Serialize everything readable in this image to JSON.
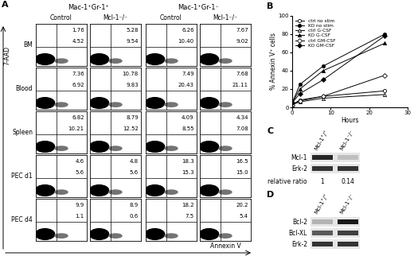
{
  "panel_labels": [
    "A",
    "B",
    "C",
    "D"
  ],
  "panel_A": {
    "y_label": "7-AAD",
    "x_label": "Annexin V",
    "groups": [
      {
        "title": "Mac-1⁺Gr-1⁺",
        "columns": [
          "Control",
          "Mcl-1⁻/⁻"
        ]
      },
      {
        "title": "Mac-1⁺Gr-1⁻",
        "columns": [
          "Control",
          "Mcl-1⁻/⁻"
        ]
      }
    ],
    "rows": [
      {
        "name": "BM",
        "cells": [
          [
            "1.76",
            "4.52"
          ],
          [
            "5.28",
            "9.54"
          ],
          [
            "6.26",
            "10.40"
          ],
          [
            "7.67",
            "9.02"
          ]
        ]
      },
      {
        "name": "Blood",
        "cells": [
          [
            "7.36",
            "6.92"
          ],
          [
            "10.78",
            "9.83"
          ],
          [
            "7.49",
            "20.43"
          ],
          [
            "7.68",
            "21.11"
          ]
        ]
      },
      {
        "name": "Spleen",
        "cells": [
          [
            "6.82",
            "10.21"
          ],
          [
            "8.79",
            "12.52"
          ],
          [
            "4.09",
            "8.55"
          ],
          [
            "4.34",
            "7.08"
          ]
        ]
      },
      {
        "name": "PEC d1",
        "cells": [
          [
            "4.6",
            "5.6"
          ],
          [
            "4.8",
            "5.6"
          ],
          [
            "18.3",
            "15.3"
          ],
          [
            "16.5",
            "15.0"
          ]
        ]
      },
      {
        "name": "PEC d4",
        "cells": [
          [
            "9.9",
            "1.1"
          ],
          [
            "8.9",
            "0.6"
          ],
          [
            "18.2",
            "7.5"
          ],
          [
            "20.2",
            "5.4"
          ]
        ]
      }
    ]
  },
  "chart_data": {
    "type": "line",
    "x_label": "Hours",
    "y_label": "% Annexin V⁺ cells",
    "x": [
      0,
      2,
      8,
      24
    ],
    "xlim": [
      0,
      30
    ],
    "xticks": [
      0,
      10,
      20,
      30
    ],
    "ylim": [
      0,
      100
    ],
    "yticks": [
      0,
      20,
      40,
      60,
      80,
      100
    ],
    "grid": false,
    "legend": "upper left",
    "series": [
      {
        "name": "ctrl no stim",
        "color": "#000000",
        "marker": "open_circle",
        "line_style": "solid",
        "values": [
          3,
          8,
          12,
          18
        ]
      },
      {
        "name": "KO no stim",
        "color": "#000000",
        "marker": "filled_circle",
        "line_style": "solid",
        "values": [
          5,
          25,
          45,
          80
        ]
      },
      {
        "name": "ctrl G-CSF",
        "color": "#000000",
        "marker": "open_triangle",
        "line_style": "solid",
        "values": [
          3,
          6,
          10,
          14
        ]
      },
      {
        "name": "KO G-CSF",
        "color": "#000000",
        "marker": "filled_triangle",
        "line_style": "solid",
        "values": [
          5,
          20,
          40,
          70
        ]
      },
      {
        "name": "ctrl GM-CSF",
        "color": "#000000",
        "marker": "open_diamond",
        "line_style": "solid",
        "values": [
          3,
          7,
          12,
          35
        ]
      },
      {
        "name": "KO GM-CSF",
        "color": "#000000",
        "marker": "filled_diamond",
        "line_style": "solid",
        "values": [
          5,
          15,
          30,
          78
        ]
      }
    ]
  },
  "panel_C": {
    "columns": [
      "Mcl-1⁺/⁺",
      "Mcl-1⁻/⁻"
    ],
    "rows": [
      "Mcl-1",
      "Erk-2"
    ],
    "ratio_label": "relative ratio",
    "ratio_values": [
      "1",
      "0.14"
    ]
  },
  "panel_D": {
    "columns": [
      "Mcl-1⁺/⁺",
      "Mcl-1⁻/⁻"
    ],
    "rows": [
      "Bcl-2",
      "Bcl-XL",
      "Erk-2"
    ]
  }
}
